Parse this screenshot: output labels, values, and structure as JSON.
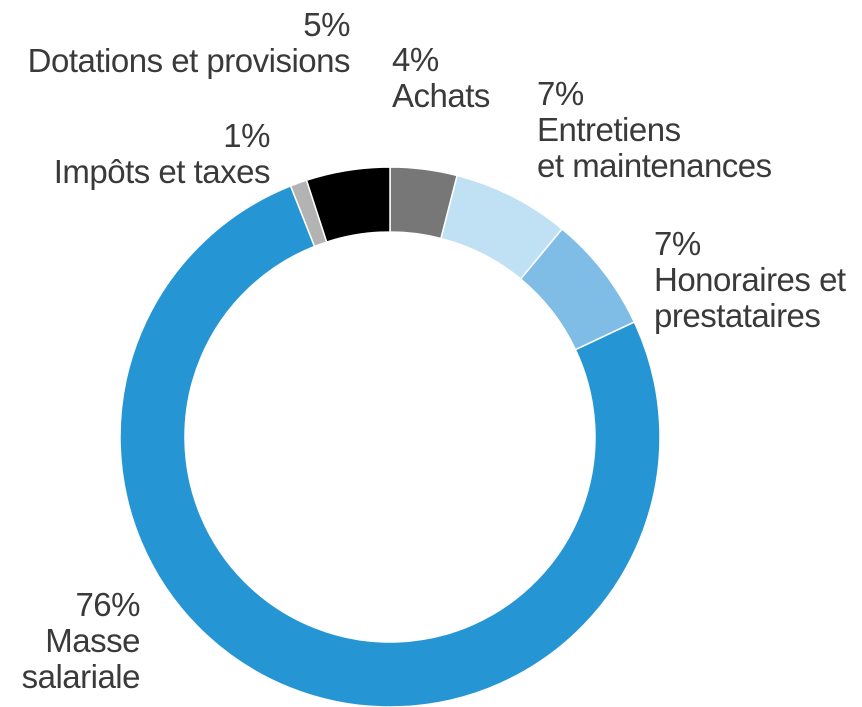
{
  "chart_data": {
    "type": "pie",
    "slices": [
      {
        "label": "Achats",
        "label_lines": [
          "Achats"
        ],
        "pct_text": "4%",
        "value": 4,
        "color": "#777777"
      },
      {
        "label": "Entretiens et maintenances",
        "label_lines": [
          "Entretiens",
          "et maintenances"
        ],
        "pct_text": "7%",
        "value": 7,
        "color": "#c0e0f3"
      },
      {
        "label": "Honoraires et prestataires",
        "label_lines": [
          "Honoraires et",
          "prestataires"
        ],
        "pct_text": "7%",
        "value": 7,
        "color": "#80bde6"
      },
      {
        "label": "Masse salariale",
        "label_lines": [
          "Masse",
          "salariale"
        ],
        "pct_text": "76%",
        "value": 76,
        "color": "#2596d3"
      },
      {
        "label": "Impôts et taxes",
        "label_lines": [
          "Impôts et taxes"
        ],
        "pct_text": "1%",
        "value": 1,
        "color": "#b3b3b3"
      },
      {
        "label": "Dotations et provisions",
        "label_lines": [
          "Dotations et provisions"
        ],
        "pct_text": "5%",
        "value": 5,
        "color": "#000000"
      }
    ]
  }
}
